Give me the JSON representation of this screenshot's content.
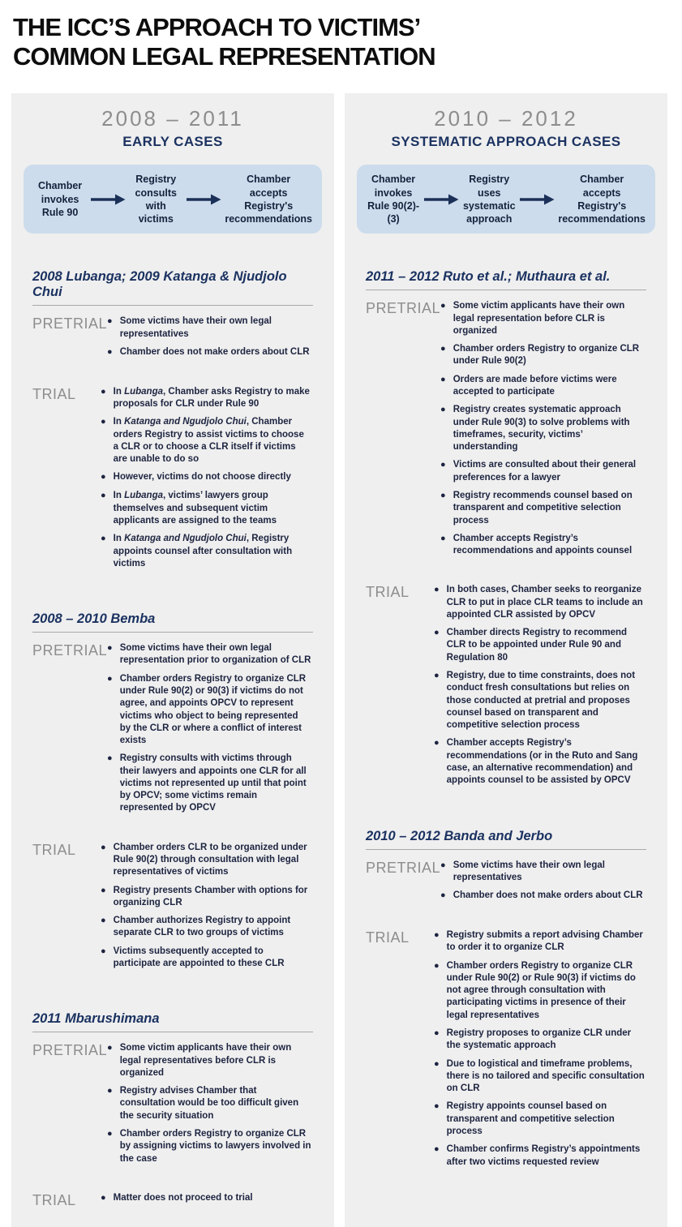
{
  "title": {
    "line1": "THE ICC’S APPROACH TO VICTIMS’",
    "line2": "COMMON LEGAL REPRESENTATION"
  },
  "labels": {
    "pretrial": "PRETRIAL",
    "trial": "TRIAL"
  },
  "colors": {
    "title_text": "#0d0d0d",
    "navy": "#1b3261",
    "dark_text": "#1d2440",
    "gray_label": "#8d8d8d",
    "panel_bg": "#efefef",
    "flow_bg": "#ccdcec",
    "arrow": "#1b3158",
    "rule": "#a8a8a8"
  },
  "icons": {
    "flow_arrow": "right-arrow",
    "bullet": "dot"
  },
  "columns": [
    {
      "years": "2008 – 2011",
      "subtitle": "EARLY CASES",
      "flow_steps": [
        "Chamber\ninvokes\nRule 90",
        "Registry\nconsults\nwith victims",
        "Chamber\naccepts\nRegistry's\nrecommendations"
      ],
      "cases": [
        {
          "title": "2008 Lubanga; 2009 Katanga & Njudjolo Chui",
          "pretrial": [
            "Some victims have their own legal representatives",
            "Chamber does not make orders about CLR"
          ],
          "trial": [
            "In *Lubanga*, Chamber asks Registry to make proposals for CLR under Rule 90",
            "In *Katanga and Ngudjolo Chui*, Chamber orders Registry to assist victims to choose a CLR or to choose a CLR itself if victims are unable to do so",
            "However, victims do not choose directly",
            "In *Lubanga*, victims’ lawyers group themselves and subsequent victim applicants are assigned to the teams",
            "In *Katanga and Ngudjolo Chui*, Registry appoints counsel after consultation with victims"
          ]
        },
        {
          "title": "2008 – 2010 Bemba",
          "pretrial": [
            "Some victims have their own legal representation prior to organization of CLR",
            "Chamber orders Registry to organize CLR under Rule 90(2) or 90(3) if victims do not agree, and appoints OPCV to represent victims who object to being represented by the CLR or where a conflict of interest exists",
            "Registry consults with victims through their lawyers and appoints one CLR for all victims not represented up until that point by OPCV; some victims remain represented by OPCV"
          ],
          "trial": [
            "Chamber orders CLR to be organized under Rule 90(2) through consultation with legal representatives of victims",
            "Registry presents Chamber with options for organizing CLR",
            "Chamber authorizes Registry to appoint separate CLR to two groups of victims",
            "Victims subsequently accepted to participate are appointed to these CLR"
          ]
        },
        {
          "title": "2011 Mbarushimana",
          "pretrial": [
            "Some victim applicants have their own legal representatives before CLR is organized",
            "Registry advises Chamber that consultation would be too difficult given the security situation",
            "Chamber orders Registry to organize CLR by assigning victims to lawyers involved in the case"
          ],
          "trial": [
            "Matter does not proceed to trial"
          ]
        }
      ]
    },
    {
      "years": "2010 – 2012",
      "subtitle": "SYSTEMATIC APPROACH CASES",
      "flow_steps": [
        "Chamber\ninvokes\nRule 90(2)-(3)",
        "Registry\nuses\nsystematic\napproach",
        "Chamber\naccepts\nRegistry's\nrecommendations"
      ],
      "cases": [
        {
          "title": "2011 – 2012 Ruto et al.; Muthaura et al.",
          "pretrial": [
            "Some victim applicants have their own legal representation before CLR is organized",
            "Chamber orders Registry to organize CLR under Rule 90(2)",
            "Orders are made before victims were accepted to participate",
            "Registry creates systematic approach under Rule 90(3) to solve problems with timeframes, security, victims’ understanding",
            "Victims are consulted about their general preferences for a lawyer",
            "Registry recommends counsel based on transparent and competitive selection process",
            "Chamber accepts Registry’s recommendations and appoints counsel"
          ],
          "trial": [
            "In both cases, Chamber seeks to reorganize CLR to put in place CLR teams to include an appointed CLR assisted by OPCV",
            "Chamber directs Registry to recommend CLR to be appointed under Rule 90 and Regulation 80",
            "Registry, due to time constraints, does not conduct fresh consultations but relies on those conducted at pretrial and proposes counsel based on transparent and competitive selection process",
            "Chamber accepts Registry’s recommendations (or in the Ruto and Sang case, an alternative recommendation) and appoints counsel to be assisted by OPCV"
          ]
        },
        {
          "title": "2010 – 2012 Banda and Jerbo",
          "pretrial": [
            "Some victims have their own legal representatives",
            "Chamber does not make orders about CLR"
          ],
          "trial": [
            "Registry submits a report advising Chamber to order it to organize CLR",
            "Chamber orders Registry to organize CLR under Rule 90(2) or Rule 90(3) if victims do not agree through consultation with participating victims in presence of their legal representatives",
            "Registry proposes to organize CLR under the systematic approach",
            "Due to logistical and timeframe problems, there is no tailored and specific consultation on CLR",
            "Registry appoints counsel based on transparent and competitive selection process",
            "Chamber confirms Registry’s appointments after two victims requested review"
          ]
        }
      ]
    }
  ]
}
